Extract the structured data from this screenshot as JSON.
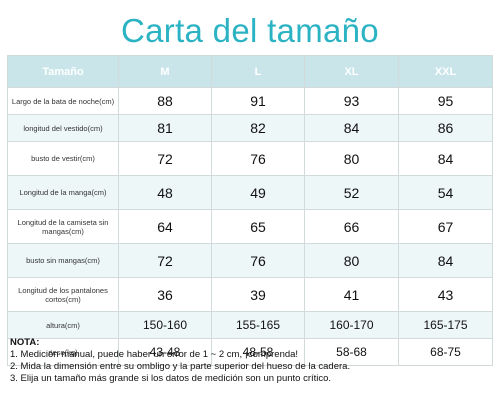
{
  "title": "Carta del tamaño",
  "table": {
    "headers": [
      "Tamaño",
      "M",
      "L",
      "XL",
      "XXL"
    ],
    "rows": [
      {
        "label": "Largo de la bata de noche(cm)",
        "values": [
          "88",
          "91",
          "93",
          "95"
        ]
      },
      {
        "label": "longitud del vestido(cm)",
        "values": [
          "81",
          "82",
          "84",
          "86"
        ]
      },
      {
        "label": "busto de vestir(cm)",
        "values": [
          "72",
          "76",
          "80",
          "84"
        ]
      },
      {
        "label": "Longitud de la manga(cm)",
        "values": [
          "48",
          "49",
          "52",
          "54"
        ]
      },
      {
        "label": "Longitud de la camiseta sin mangas(cm)",
        "values": [
          "64",
          "65",
          "66",
          "67"
        ]
      },
      {
        "label": "busto sin mangas(cm)",
        "values": [
          "72",
          "76",
          "80",
          "84"
        ]
      },
      {
        "label": "Longitud de los pantalones cortos(cm)",
        "values": [
          "36",
          "39",
          "41",
          "43"
        ]
      },
      {
        "label": "altura(cm)",
        "values": [
          "150-160",
          "155-165",
          "160-170",
          "165-175"
        ]
      },
      {
        "label": "peso(kg)",
        "values": [
          "43-48",
          "48-58",
          "58-68",
          "68-75"
        ]
      }
    ]
  },
  "notes": {
    "heading": "NOTA:",
    "lines": [
      "1. Medición manual, puede haber un error de 1 ~ 2 cm, ¡comprenda!",
      "2. Mida la dimensión entre su ombligo y la parte superior del hueso de la cadera.",
      "3. Elija un tamaño más grande si los datos de medición son un punto crítico."
    ]
  },
  "colors": {
    "title": "#2bb3c4",
    "header_bg": "#c9e5ea",
    "stripe_bg": "#eef7f8",
    "border": "#d2dadb"
  }
}
